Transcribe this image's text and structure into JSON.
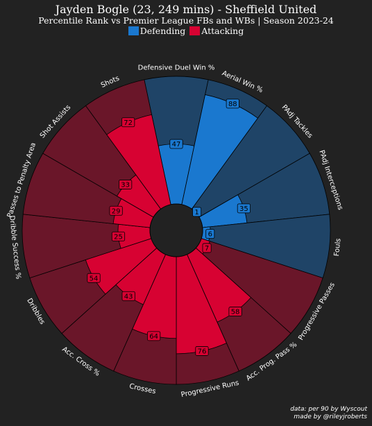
{
  "title": "Jayden Bogle (23, 249 mins) - Sheffield United",
  "subtitle": "Percentile Rank vs Premier League FBs and WBs | Season 2023-24",
  "legend": [
    {
      "label": "Defending",
      "color": "#1a78cf"
    },
    {
      "label": "Attacking",
      "color": "#d70232"
    }
  ],
  "colors": {
    "background": "#222222",
    "defending_fill": "#1a78cf",
    "defending_bg": "#1f4467",
    "attacking_fill": "#d70232",
    "attacking_bg": "#6a1629",
    "center": "#222222"
  },
  "credits": {
    "line1": "data: per 90 by Wyscout",
    "line2": "made by @rileyjroberts"
  },
  "chart_data": {
    "type": "radial-bar",
    "range": [
      0,
      100
    ],
    "params": [
      {
        "name": "Defensive Duel Win %",
        "value": 47,
        "group": "Defending"
      },
      {
        "name": "Aerial Win %",
        "value": 88,
        "group": "Defending"
      },
      {
        "name": "PAdj Tackles",
        "value": 1,
        "group": "Defending"
      },
      {
        "name": "PAdj Interceptions",
        "value": 35,
        "group": "Defending"
      },
      {
        "name": "Fouls",
        "value": 6,
        "group": "Defending"
      },
      {
        "name": "Progressive Passes",
        "value": 7,
        "group": "Attacking"
      },
      {
        "name": "Acc. Prog. Pass %",
        "value": 58,
        "group": "Attacking"
      },
      {
        "name": "Progressive Runs",
        "value": 76,
        "group": "Attacking"
      },
      {
        "name": "Crosses",
        "value": 64,
        "group": "Attacking"
      },
      {
        "name": "Acc. Cross %",
        "value": 43,
        "group": "Attacking"
      },
      {
        "name": "Dribbles",
        "value": 54,
        "group": "Attacking"
      },
      {
        "name": "Dribble Success %",
        "value": 25,
        "group": "Attacking"
      },
      {
        "name": "Passes to Penalty Area",
        "value": 29,
        "group": "Attacking"
      },
      {
        "name": "Shot Assists",
        "value": 33,
        "group": "Attacking"
      },
      {
        "name": "Shots",
        "value": 72,
        "group": "Attacking"
      }
    ]
  }
}
